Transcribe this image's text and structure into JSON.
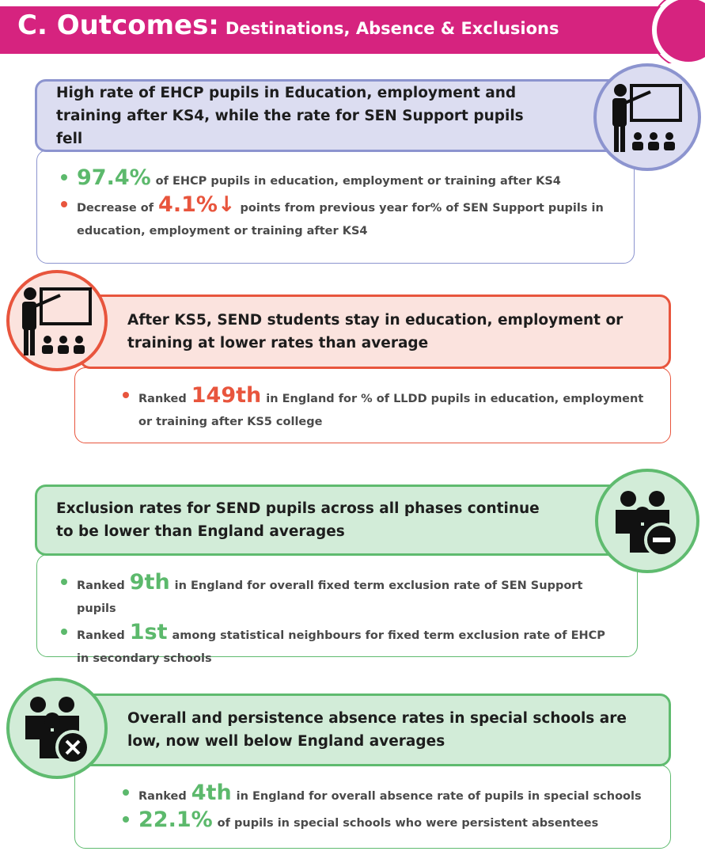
{
  "header": {
    "title": "C. Outcomes:",
    "subtitle": "Destinations, Absence & Exclusions"
  },
  "sections": [
    {
      "heading": "High rate of EHCP pupils in Education, employment and training after KS4, while the rate for SEN Support pupils fell",
      "bullets": [
        {
          "highlight": "97.4%",
          "post": "of EHCP pupils in education, employment or training after KS4"
        },
        {
          "pre": "Decrease of",
          "highlight": "4.1%↓",
          "post": "points from previous year for% of SEN Support pupils in education, employment or training after KS4"
        }
      ]
    },
    {
      "heading": "After KS5, SEND students stay in education, employment or training at lower rates than average",
      "bullets": [
        {
          "pre": "Ranked",
          "highlight": "149th",
          "post": "in England for % of LLDD pupils in education, employment or training after KS5 college"
        }
      ]
    },
    {
      "heading": "Exclusion rates for SEND pupils across all phases continue to be lower than England averages",
      "bullets": [
        {
          "pre": "Ranked",
          "highlight": "9th",
          "post": "in England for overall fixed term exclusion rate of SEN Support pupils"
        },
        {
          "pre": "Ranked",
          "highlight": "1st",
          "post": "among statistical neighbours for fixed term exclusion rate of EHCP in secondary schools"
        }
      ]
    },
    {
      "heading": "Overall and persistence absence rates in special schools are low, now well below England averages",
      "bullets": [
        {
          "pre": "Ranked",
          "highlight": "4th",
          "post": "in England for overall absence rate of pupils in special schools"
        },
        {
          "highlight": "22.1%",
          "post": "of pupils in special schools who were persistent absentees"
        }
      ]
    }
  ]
}
